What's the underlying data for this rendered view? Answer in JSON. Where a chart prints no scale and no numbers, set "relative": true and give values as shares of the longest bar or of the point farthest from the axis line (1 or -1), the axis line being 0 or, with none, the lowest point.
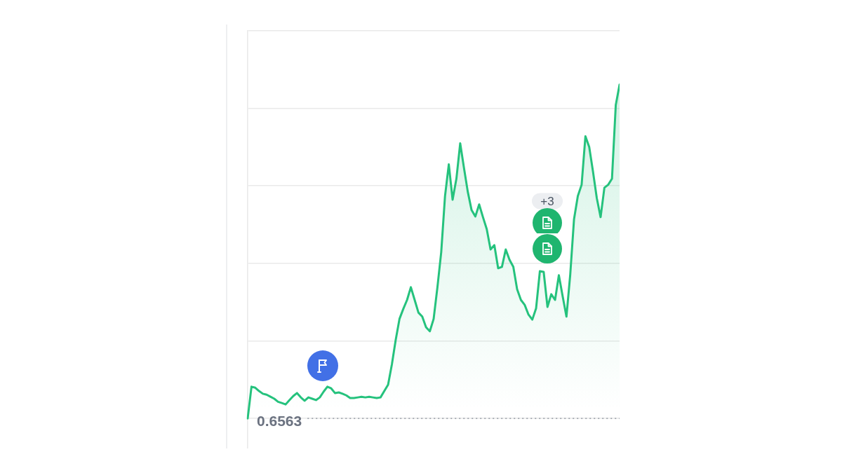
{
  "chart_data": {
    "type": "area",
    "categories": [
      null,
      null,
      null,
      null,
      null,
      null,
      null,
      null,
      null,
      null,
      null,
      null,
      null,
      null,
      null,
      null,
      null,
      null,
      null,
      null,
      null,
      null,
      null,
      null,
      null,
      null,
      null,
      null,
      null,
      null,
      null,
      null,
      null,
      null,
      null,
      null,
      null,
      null,
      null,
      null,
      null,
      null,
      null,
      null,
      null,
      null,
      null,
      null,
      null,
      null,
      null,
      null,
      null,
      null,
      null,
      null,
      null,
      null,
      null,
      null,
      null,
      null,
      null,
      null,
      null,
      null,
      null,
      null,
      null,
      null,
      null,
      null,
      null,
      null,
      null,
      null,
      null,
      null,
      null,
      null,
      null,
      null,
      null,
      null,
      null,
      null,
      null,
      null,
      null,
      null,
      null,
      null,
      null,
      null,
      null,
      null,
      null,
      null,
      null
    ],
    "values": [
      0,
      0.095,
      0.092,
      0.082,
      0.074,
      0.071,
      0.065,
      0.059,
      0.05,
      0.046,
      0.042,
      0.055,
      0.067,
      0.076,
      0.063,
      0.053,
      0.063,
      0.059,
      0.055,
      0.063,
      0.08,
      0.095,
      0.09,
      0.076,
      0.078,
      0.074,
      0.069,
      0.061,
      0.061,
      0.063,
      0.065,
      0.063,
      0.065,
      0.063,
      0.061,
      0.063,
      0.082,
      0.101,
      0.162,
      0.235,
      0.298,
      0.328,
      0.355,
      0.393,
      0.355,
      0.317,
      0.305,
      0.273,
      0.261,
      0.298,
      0.393,
      0.498,
      0.666,
      0.761,
      0.655,
      0.718,
      0.824,
      0.75,
      0.679,
      0.624,
      0.605,
      0.641,
      0.603,
      0.567,
      0.506,
      0.519,
      0.45,
      0.454,
      0.506,
      0.475,
      0.454,
      0.387,
      0.355,
      0.34,
      0.311,
      0.296,
      0.33,
      0.441,
      0.439,
      0.334,
      0.372,
      0.355,
      0.429,
      0.366,
      0.305,
      0.431,
      0.597,
      0.666,
      0.7,
      0.845,
      0.813,
      0.739,
      0.66,
      0.603,
      0.691,
      0.7,
      0.718,
      0.939,
      1
    ],
    "color": "#25c27d",
    "relative": true,
    "grid": "y",
    "ref_lines": [
      {
        "axis": "y",
        "value": 0,
        "line_style": "dotted",
        "color": "#a3a8b0"
      }
    ],
    "annotations": [
      "0.6563",
      "+3"
    ]
  }
}
